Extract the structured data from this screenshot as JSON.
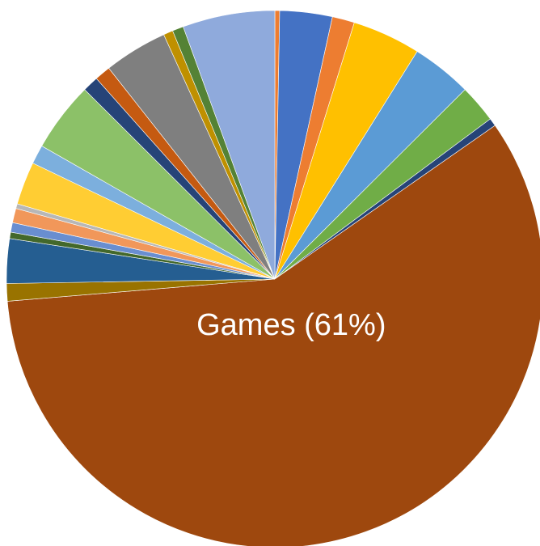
{
  "chart_data": {
    "type": "pie",
    "start_angle_deg": 0,
    "direction": "clockwise",
    "legend": "none",
    "series": [
      {
        "slices": [
          {
            "value": 0.3,
            "color": "#ED7D31"
          },
          {
            "value": 3.3,
            "color": "#4472C4"
          },
          {
            "value": 1.4,
            "color": "#ED7D31"
          },
          {
            "value": 4.3,
            "color": "#FFC000"
          },
          {
            "value": 3.8,
            "color": "#5B9BD5"
          },
          {
            "value": 2.4,
            "color": "#70AD47"
          },
          {
            "value": 0.5,
            "color": "#264478"
          },
          {
            "value": 61.0,
            "color": "#9E480E",
            "label": "Games (61%)"
          },
          {
            "value": 1.1,
            "color": "#997300"
          },
          {
            "value": 2.8,
            "color": "#255E91"
          },
          {
            "value": 0.4,
            "color": "#43682B"
          },
          {
            "value": 0.6,
            "color": "#698ED0"
          },
          {
            "value": 0.9,
            "color": "#F1975A"
          },
          {
            "value": 0.3,
            "color": "#B7B7B7"
          },
          {
            "value": 2.7,
            "color": "#FFCD33"
          },
          {
            "value": 1.2,
            "color": "#7CAFDD"
          },
          {
            "value": 4.4,
            "color": "#8CC168"
          },
          {
            "value": 1.0,
            "color": "#264478"
          },
          {
            "value": 1.0,
            "color": "#C55A11"
          },
          {
            "value": 4.0,
            "color": "#7F7F7F"
          },
          {
            "value": 0.6,
            "color": "#BF9000"
          },
          {
            "value": 0.7,
            "color": "#548235"
          },
          {
            "value": 5.8,
            "color": "#8FAADC"
          }
        ]
      }
    ]
  }
}
